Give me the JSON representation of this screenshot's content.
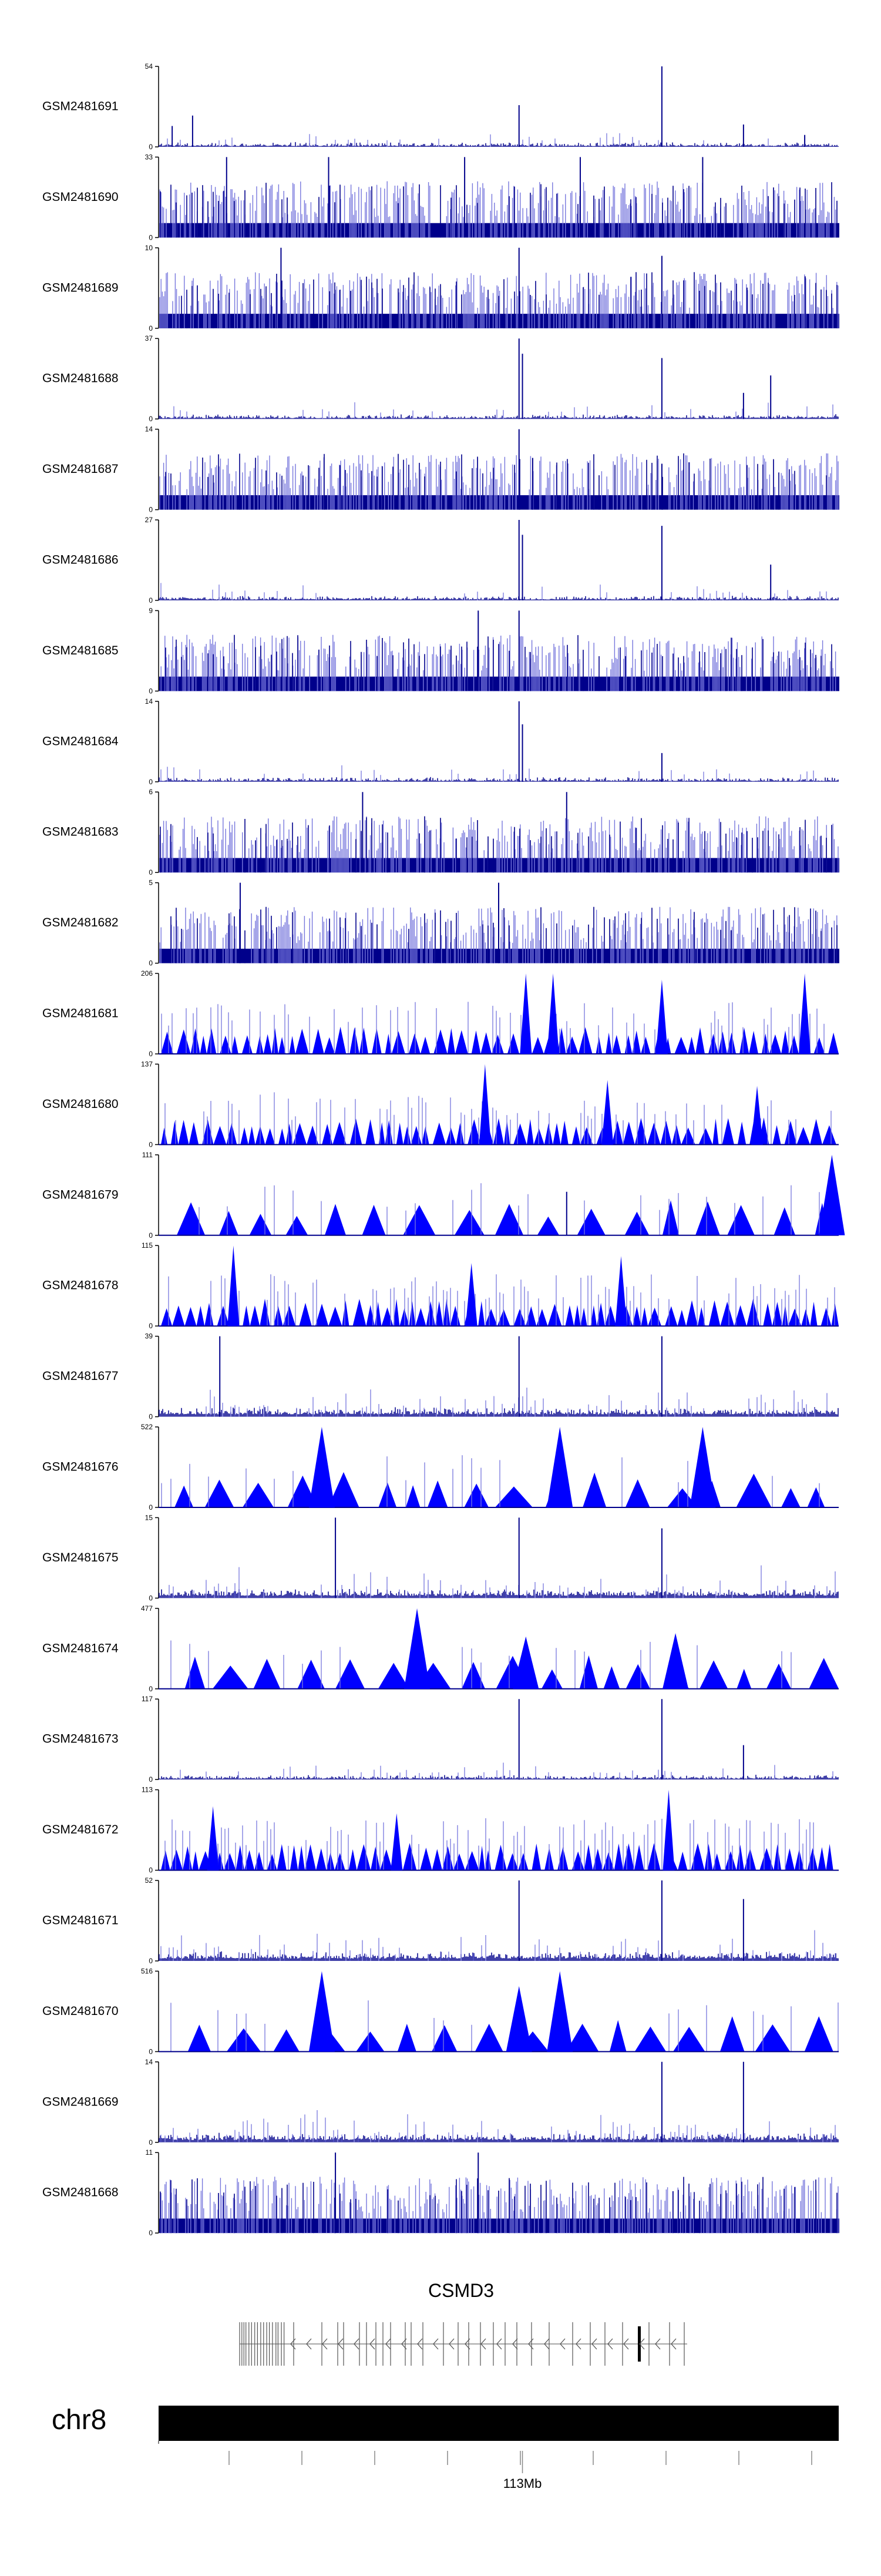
{
  "colors": {
    "signal_dark": "#00008b",
    "signal_bright": "#0000ff",
    "signal_light": "#7777dd",
    "axis": "#000000",
    "gene": "#000000",
    "chrom_bar": "#000000"
  },
  "chart_data": {
    "type": "genome-browser-tracks",
    "tracks": [
      {
        "label": "GSM2481691",
        "max": 54,
        "min": 0,
        "style": "spikes",
        "peaks": [
          [
            0.02,
            14
          ],
          [
            0.05,
            21
          ],
          [
            0.53,
            28
          ],
          [
            0.74,
            54
          ],
          [
            0.86,
            15
          ],
          [
            0.95,
            8
          ]
        ]
      },
      {
        "label": "GSM2481690",
        "max": 33,
        "min": 0,
        "style": "dense",
        "peaks": [
          [
            0.1,
            33
          ],
          [
            0.25,
            33
          ],
          [
            0.45,
            33
          ],
          [
            0.62,
            33
          ],
          [
            0.8,
            33
          ]
        ]
      },
      {
        "label": "GSM2481689",
        "max": 10,
        "min": 0,
        "style": "dense",
        "peaks": [
          [
            0.18,
            10
          ],
          [
            0.53,
            10
          ],
          [
            0.74,
            9
          ]
        ]
      },
      {
        "label": "GSM2481688",
        "max": 37,
        "min": 0,
        "style": "spikes",
        "peaks": [
          [
            0.53,
            37
          ],
          [
            0.535,
            30
          ],
          [
            0.74,
            28
          ],
          [
            0.86,
            12
          ],
          [
            0.9,
            20
          ]
        ]
      },
      {
        "label": "GSM2481687",
        "max": 14,
        "min": 0,
        "style": "dense",
        "peaks": [
          [
            0.53,
            14
          ],
          [
            0.55,
            9
          ],
          [
            0.74,
            8
          ]
        ]
      },
      {
        "label": "GSM2481686",
        "max": 27,
        "min": 0,
        "style": "spikes",
        "peaks": [
          [
            0.53,
            27
          ],
          [
            0.535,
            22
          ],
          [
            0.74,
            25
          ],
          [
            0.9,
            12
          ]
        ]
      },
      {
        "label": "GSM2481685",
        "max": 9,
        "min": 0,
        "style": "dense",
        "peaks": [
          [
            0.47,
            9
          ],
          [
            0.53,
            9
          ]
        ]
      },
      {
        "label": "GSM2481684",
        "max": 14,
        "min": 0,
        "style": "spikes",
        "peaks": [
          [
            0.53,
            14
          ],
          [
            0.535,
            10
          ],
          [
            0.74,
            5
          ]
        ]
      },
      {
        "label": "GSM2481683",
        "max": 6,
        "min": 0,
        "style": "dense",
        "peaks": [
          [
            0.3,
            6
          ],
          [
            0.6,
            6
          ]
        ]
      },
      {
        "label": "GSM2481682",
        "max": 5,
        "min": 0,
        "style": "dense",
        "peaks": [
          [
            0.12,
            5
          ],
          [
            0.5,
            5
          ]
        ]
      },
      {
        "label": "GSM2481681",
        "max": 206,
        "min": 0,
        "style": "triangles",
        "peaks": [
          [
            0.54,
            206
          ],
          [
            0.58,
            206
          ],
          [
            0.74,
            190
          ],
          [
            0.95,
            206
          ]
        ]
      },
      {
        "label": "GSM2481680",
        "max": 137,
        "min": 0,
        "style": "triangles",
        "peaks": [
          [
            0.48,
            137
          ],
          [
            0.66,
            110
          ],
          [
            0.88,
            100
          ]
        ]
      },
      {
        "label": "GSM2481679",
        "max": 111,
        "min": 0,
        "style": "triangles-sparse",
        "peaks": [
          [
            0.99,
            111
          ],
          [
            0.6,
            60
          ]
        ]
      },
      {
        "label": "GSM2481678",
        "max": 115,
        "min": 0,
        "style": "triangles",
        "peaks": [
          [
            0.11,
            115
          ],
          [
            0.46,
            90
          ],
          [
            0.68,
            100
          ]
        ]
      },
      {
        "label": "GSM2481677",
        "max": 39,
        "min": 0,
        "style": "spikes-dense",
        "peaks": [
          [
            0.09,
            39
          ],
          [
            0.53,
            39
          ],
          [
            0.74,
            39
          ]
        ]
      },
      {
        "label": "GSM2481676",
        "max": 522,
        "min": 0,
        "style": "triangles-sparse",
        "peaks": [
          [
            0.24,
            522
          ],
          [
            0.59,
            522
          ],
          [
            0.8,
            522
          ]
        ]
      },
      {
        "label": "GSM2481675",
        "max": 15,
        "min": 0,
        "style": "spikes-dense",
        "peaks": [
          [
            0.26,
            15
          ],
          [
            0.53,
            15
          ],
          [
            0.74,
            13
          ]
        ]
      },
      {
        "label": "GSM2481674",
        "max": 477,
        "min": 0,
        "style": "triangles-sparse",
        "peaks": [
          [
            0.38,
            477
          ],
          [
            0.76,
            330
          ],
          [
            0.54,
            310
          ]
        ]
      },
      {
        "label": "GSM2481673",
        "max": 117,
        "min": 0,
        "style": "spikes",
        "peaks": [
          [
            0.53,
            117
          ],
          [
            0.74,
            117
          ],
          [
            0.86,
            50
          ]
        ]
      },
      {
        "label": "GSM2481672",
        "max": 113,
        "min": 0,
        "style": "triangles",
        "peaks": [
          [
            0.75,
            113
          ],
          [
            0.08,
            90
          ],
          [
            0.35,
            80
          ]
        ]
      },
      {
        "label": "GSM2481671",
        "max": 52,
        "min": 0,
        "style": "spikes-dense",
        "peaks": [
          [
            0.53,
            52
          ],
          [
            0.74,
            52
          ],
          [
            0.86,
            40
          ]
        ]
      },
      {
        "label": "GSM2481670",
        "max": 516,
        "min": 0,
        "style": "triangles-sparse",
        "peaks": [
          [
            0.24,
            516
          ],
          [
            0.59,
            516
          ],
          [
            0.53,
            420
          ]
        ]
      },
      {
        "label": "GSM2481669",
        "max": 14,
        "min": 0,
        "style": "spikes-dense",
        "peaks": [
          [
            0.74,
            14
          ],
          [
            0.86,
            14
          ]
        ]
      },
      {
        "label": "GSM2481668",
        "max": 11,
        "min": 0,
        "style": "dense",
        "peaks": [
          [
            0.26,
            11
          ],
          [
            0.47,
            11
          ]
        ]
      }
    ],
    "gene": {
      "name": "CSMD3",
      "strand": "-"
    },
    "chromosome": {
      "name": "chr8",
      "tick_label": "113Mb",
      "tick_label_position": 0.535,
      "minor_ticks": 9
    }
  }
}
